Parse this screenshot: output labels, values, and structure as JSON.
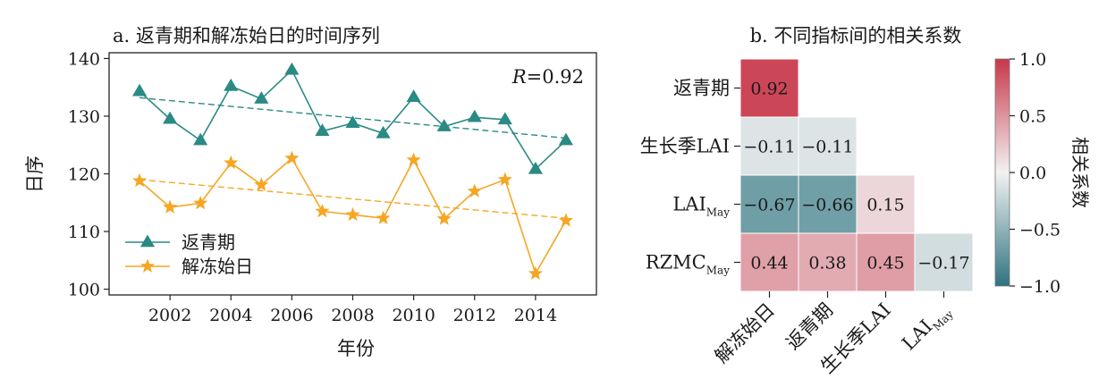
{
  "chart_data": [
    {
      "type": "line",
      "title": "a. 返青期和解冻始日的时间序列",
      "xlabel": "年份",
      "ylabel": "日序",
      "xlim": [
        2000,
        2016
      ],
      "ylim": [
        99,
        141
      ],
      "xticks": [
        "2002",
        "2004",
        "2006",
        "2008",
        "2010",
        "2012",
        "2014"
      ],
      "yticks": [
        "100",
        "110",
        "120",
        "130",
        "140"
      ],
      "annotation": {
        "italic": "R",
        "rest": "=0.92"
      },
      "legend": "lower-left",
      "x": [
        2001,
        2002,
        2003,
        2004,
        2005,
        2006,
        2007,
        2008,
        2009,
        2010,
        2011,
        2012,
        2013,
        2014,
        2015
      ],
      "series": [
        {
          "name": "返青期",
          "marker": "triangle",
          "color": "#2a8a84",
          "values": [
            134.3,
            129.5,
            125.8,
            135.2,
            133.0,
            138.0,
            127.4,
            128.8,
            127.0,
            133.3,
            128.2,
            129.8,
            129.4,
            120.8,
            125.8
          ],
          "trend": [
            133.2,
            126.2
          ]
        },
        {
          "name": "解冻始日",
          "marker": "star",
          "color": "#f5a623",
          "values": [
            118.8,
            114.2,
            114.9,
            121.9,
            118.1,
            122.7,
            113.5,
            112.9,
            112.3,
            122.4,
            112.2,
            117.0,
            119.0,
            102.7,
            111.9
          ],
          "trend": [
            119.0,
            112.3
          ]
        }
      ]
    },
    {
      "type": "heatmap",
      "title": "b. 不同指标间的相关系数",
      "rows": [
        {
          "label": "返青期",
          "sub": ""
        },
        {
          "label": "生长季LAI",
          "sub": ""
        },
        {
          "label": "LAI",
          "sub": "May"
        },
        {
          "label": "RZMC",
          "sub": "May"
        }
      ],
      "columns": [
        {
          "label": "解冻始日",
          "sub": ""
        },
        {
          "label": "返青期",
          "sub": ""
        },
        {
          "label": "生长季LAI",
          "sub": ""
        },
        {
          "label": "LAI",
          "sub": "May"
        }
      ],
      "values": [
        [
          0.92
        ],
        [
          -0.11,
          -0.11
        ],
        [
          -0.67,
          -0.66,
          0.15
        ],
        [
          0.44,
          0.38,
          0.45,
          -0.17
        ]
      ],
      "labels": [
        [
          "0.92"
        ],
        [
          "−0.11",
          "−0.11"
        ],
        [
          "−0.67",
          "−0.66",
          "0.15"
        ],
        [
          "0.44",
          "0.38",
          "0.45",
          "−0.17"
        ]
      ],
      "colorbar": {
        "label": "相关系数",
        "range": [
          -1.0,
          1.0
        ],
        "ticks": [
          "1.0",
          "0.5",
          "0.0",
          "−0.5",
          "−1.0"
        ],
        "low_color": "#2e7480",
        "mid_color": "#f2f2f2",
        "high_color": "#c8374a"
      }
    }
  ]
}
